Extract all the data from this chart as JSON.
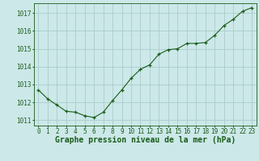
{
  "x": [
    0,
    1,
    2,
    3,
    4,
    5,
    6,
    7,
    8,
    9,
    10,
    11,
    12,
    13,
    14,
    15,
    16,
    17,
    18,
    19,
    20,
    21,
    22,
    23
  ],
  "y": [
    1012.7,
    1012.2,
    1011.85,
    1011.5,
    1011.45,
    1011.25,
    1011.15,
    1011.45,
    1012.1,
    1012.7,
    1013.35,
    1013.85,
    1014.1,
    1014.7,
    1014.95,
    1015.0,
    1015.3,
    1015.3,
    1015.35,
    1015.75,
    1016.3,
    1016.65,
    1017.1,
    1017.3
  ],
  "line_color": "#1a5c1a",
  "marker_color": "#1a5c1a",
  "bg_color": "#cce8e8",
  "grid_color": "#aacccc",
  "xlabel": "Graphe pression niveau de la mer (hPa)",
  "ylim": [
    1010.7,
    1017.55
  ],
  "yticks": [
    1011,
    1012,
    1013,
    1014,
    1015,
    1016,
    1017
  ],
  "xticks": [
    0,
    1,
    2,
    3,
    4,
    5,
    6,
    7,
    8,
    9,
    10,
    11,
    12,
    13,
    14,
    15,
    16,
    17,
    18,
    19,
    20,
    21,
    22,
    23
  ],
  "tick_fontsize": 5.5,
  "label_fontsize": 7.0
}
